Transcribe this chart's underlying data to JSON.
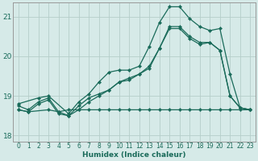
{
  "xlabel": "Humidex (Indice chaleur)",
  "ylabel": "",
  "xlim": [
    -0.5,
    23.5
  ],
  "ylim": [
    17.85,
    21.35
  ],
  "yticks": [
    18,
    19,
    20,
    21
  ],
  "xticks": [
    0,
    1,
    2,
    3,
    4,
    5,
    6,
    7,
    8,
    9,
    10,
    11,
    12,
    13,
    14,
    15,
    16,
    17,
    18,
    19,
    20,
    21,
    22,
    23
  ],
  "bg_color": "#d6eae8",
  "grid_color": "#b5ceca",
  "line_color": "#1a6b5a",
  "lines": [
    {
      "x": [
        0,
        1,
        3,
        4,
        5,
        6,
        7,
        8,
        9,
        10,
        11,
        12,
        13,
        14,
        15,
        16,
        17,
        18,
        19,
        20,
        21,
        22,
        23
      ],
      "y": [
        18.65,
        18.6,
        18.65,
        18.6,
        18.65,
        18.65,
        18.65,
        18.65,
        18.65,
        18.65,
        18.65,
        18.65,
        18.65,
        18.65,
        18.65,
        18.65,
        18.65,
        18.65,
        18.65,
        18.65,
        18.65,
        18.65,
        18.65
      ]
    },
    {
      "x": [
        0,
        1,
        2,
        3,
        4,
        5,
        6,
        7,
        8,
        9,
        10,
        11,
        12,
        13,
        14,
        15,
        16,
        17,
        18,
        19,
        20,
        21,
        22,
        23
      ],
      "y": [
        18.75,
        18.65,
        18.85,
        18.95,
        18.6,
        18.5,
        18.75,
        18.95,
        19.05,
        19.15,
        19.35,
        19.45,
        19.55,
        19.7,
        20.2,
        20.75,
        20.75,
        20.5,
        20.35,
        20.35,
        20.15,
        19.0,
        18.7,
        18.65
      ]
    },
    {
      "x": [
        0,
        2,
        3,
        5,
        6,
        7,
        8,
        9,
        10,
        11,
        12,
        13,
        14,
        15,
        16,
        17,
        18,
        19,
        20,
        21,
        22,
        23
      ],
      "y": [
        18.8,
        18.95,
        19.0,
        18.55,
        18.85,
        19.05,
        19.35,
        19.6,
        19.65,
        19.65,
        19.75,
        20.25,
        20.85,
        21.25,
        21.25,
        20.95,
        20.75,
        20.65,
        20.7,
        19.55,
        18.7,
        18.65
      ]
    },
    {
      "x": [
        0,
        1,
        2,
        3,
        4,
        5,
        6,
        7,
        8,
        9,
        10,
        11,
        12,
        13,
        14,
        15,
        16,
        17,
        18,
        19,
        20,
        21,
        22,
        23
      ],
      "y": [
        18.65,
        18.6,
        18.8,
        18.9,
        18.55,
        18.5,
        18.65,
        18.85,
        19.0,
        19.15,
        19.35,
        19.4,
        19.55,
        19.75,
        20.2,
        20.7,
        20.7,
        20.45,
        20.3,
        20.35,
        20.15,
        19.0,
        18.7,
        18.65
      ]
    }
  ]
}
